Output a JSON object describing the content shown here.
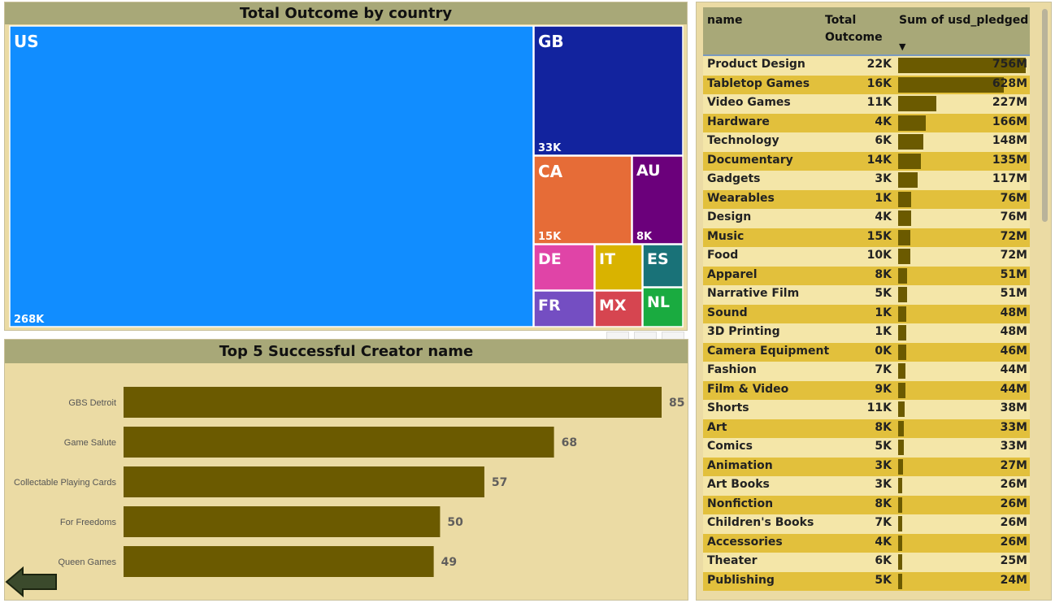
{
  "treemap": {
    "title": "Total Outcome by country",
    "colors": {
      "US": "#118dff",
      "GB": "#12239e",
      "CA": "#e66c37",
      "AU": "#6b007b",
      "DE": "#e044a7",
      "IT": "#d9b300",
      "ES": "#197278",
      "FR": "#744ec2",
      "MX": "#d64550",
      "NL": "#1aab40"
    },
    "cells": [
      {
        "code": "US",
        "value_label": "268K"
      },
      {
        "code": "GB",
        "value_label": "33K"
      },
      {
        "code": "CA",
        "value_label": "15K"
      },
      {
        "code": "AU",
        "value_label": "8K"
      },
      {
        "code": "DE",
        "value_label": ""
      },
      {
        "code": "IT",
        "value_label": ""
      },
      {
        "code": "ES",
        "value_label": ""
      },
      {
        "code": "FR",
        "value_label": ""
      },
      {
        "code": "MX",
        "value_label": ""
      },
      {
        "code": "NL",
        "value_label": ""
      }
    ]
  },
  "chart_data": [
    {
      "type": "bar",
      "orientation": "horizontal",
      "title": "Top 5 Successful Creator name",
      "categories": [
        "GBS Detroit",
        "Game Salute",
        "Collectable Playing Cards",
        "For Freedoms",
        "Queen Games"
      ],
      "values": [
        85,
        68,
        57,
        50,
        49
      ],
      "xlim": [
        0,
        88
      ],
      "bar_color": "#6b5a00",
      "grid": false
    },
    {
      "type": "table",
      "columns": [
        "name",
        "Total Outcome",
        "Sum of usd_pledged"
      ],
      "sort_indicator": "▼",
      "rows": [
        {
          "name": "Product Design",
          "total": "22K",
          "sum": "756M",
          "value": 756
        },
        {
          "name": "Tabletop Games",
          "total": "16K",
          "sum": "628M",
          "value": 628
        },
        {
          "name": "Video Games",
          "total": "11K",
          "sum": "227M",
          "value": 227
        },
        {
          "name": "Hardware",
          "total": "4K",
          "sum": "166M",
          "value": 166
        },
        {
          "name": "Technology",
          "total": "6K",
          "sum": "148M",
          "value": 148
        },
        {
          "name": "Documentary",
          "total": "14K",
          "sum": "135M",
          "value": 135
        },
        {
          "name": "Gadgets",
          "total": "3K",
          "sum": "117M",
          "value": 117
        },
        {
          "name": "Wearables",
          "total": "1K",
          "sum": "76M",
          "value": 76
        },
        {
          "name": "Design",
          "total": "4K",
          "sum": "76M",
          "value": 76
        },
        {
          "name": "Music",
          "total": "15K",
          "sum": "72M",
          "value": 72
        },
        {
          "name": "Food",
          "total": "10K",
          "sum": "72M",
          "value": 72
        },
        {
          "name": "Apparel",
          "total": "8K",
          "sum": "51M",
          "value": 51
        },
        {
          "name": "Narrative Film",
          "total": "5K",
          "sum": "51M",
          "value": 51
        },
        {
          "name": "Sound",
          "total": "1K",
          "sum": "48M",
          "value": 48
        },
        {
          "name": "3D Printing",
          "total": "1K",
          "sum": "48M",
          "value": 48
        },
        {
          "name": "Camera Equipment",
          "total": "0K",
          "sum": "46M",
          "value": 46
        },
        {
          "name": "Fashion",
          "total": "7K",
          "sum": "44M",
          "value": 44
        },
        {
          "name": "Film & Video",
          "total": "9K",
          "sum": "44M",
          "value": 44
        },
        {
          "name": "Shorts",
          "total": "11K",
          "sum": "38M",
          "value": 38
        },
        {
          "name": "Art",
          "total": "8K",
          "sum": "33M",
          "value": 33
        },
        {
          "name": "Comics",
          "total": "5K",
          "sum": "33M",
          "value": 33
        },
        {
          "name": "Animation",
          "total": "3K",
          "sum": "27M",
          "value": 27
        },
        {
          "name": "Art Books",
          "total": "3K",
          "sum": "26M",
          "value": 26
        },
        {
          "name": "Nonfiction",
          "total": "8K",
          "sum": "26M",
          "value": 26
        },
        {
          "name": "Children's Books",
          "total": "7K",
          "sum": "26M",
          "value": 26
        },
        {
          "name": "Accessories",
          "total": "4K",
          "sum": "26M",
          "value": 26
        },
        {
          "name": "Theater",
          "total": "6K",
          "sum": "25M",
          "value": 25
        },
        {
          "name": "Publishing",
          "total": "5K",
          "sum": "24M",
          "value": 24
        }
      ],
      "databar_color": "#6b5a00",
      "row_colors": [
        "#f4e6a8",
        "#e2c03c"
      ]
    }
  ],
  "icons": {
    "back": "back-arrow-icon"
  }
}
